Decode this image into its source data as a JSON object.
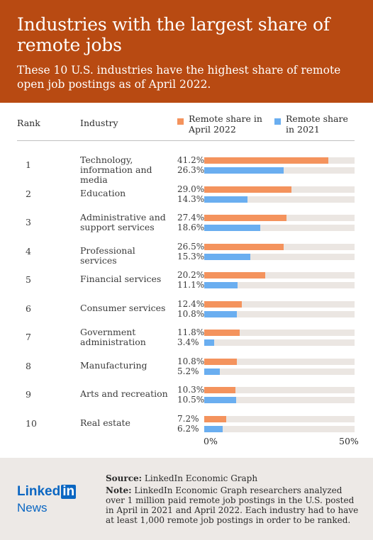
{
  "header": {
    "title": "Industries with the largest share of remote jobs",
    "subtitle": "These 10 U.S. industries have the highest share of remote open job postings as of April 2022."
  },
  "table": {
    "rank_header": "Rank",
    "industry_header": "Industry",
    "legend_2022": "Remote share in April 2022",
    "legend_2021": "Remote share in 2021"
  },
  "colors": {
    "series_2022": "#f4935d",
    "series_2021": "#6aaef0",
    "track": "#ebe6e2",
    "header_bg": "#b84a12",
    "brand": "#0a66c2"
  },
  "chart_data": {
    "type": "bar",
    "orientation": "horizontal",
    "xlim": [
      0,
      50
    ],
    "ticks": [
      "0%",
      "50%"
    ],
    "rows": [
      {
        "rank": "1",
        "industry": "Technology, information and media",
        "v2022": 41.2,
        "v2021": 26.3,
        "l2022": "41.2%",
        "l2021": "26.3%"
      },
      {
        "rank": "2",
        "industry": "Education",
        "v2022": 29.0,
        "v2021": 14.3,
        "l2022": "29.0%",
        "l2021": "14.3%"
      },
      {
        "rank": "3",
        "industry": "Administrative and support services",
        "v2022": 27.4,
        "v2021": 18.6,
        "l2022": "27.4%",
        "l2021": "18.6%"
      },
      {
        "rank": "4",
        "industry": "Professional services",
        "v2022": 26.5,
        "v2021": 15.3,
        "l2022": "26.5%",
        "l2021": "15.3%"
      },
      {
        "rank": "5",
        "industry": "Financial services",
        "v2022": 20.2,
        "v2021": 11.1,
        "l2022": "20.2%",
        "l2021": "11.1%"
      },
      {
        "rank": "6",
        "industry": "Consumer services",
        "v2022": 12.4,
        "v2021": 10.8,
        "l2022": "12.4%",
        "l2021": "10.8%"
      },
      {
        "rank": "7",
        "industry": "Government administration",
        "v2022": 11.8,
        "v2021": 3.4,
        "l2022": "11.8%",
        "l2021": "3.4%"
      },
      {
        "rank": "8",
        "industry": "Manufacturing",
        "v2022": 10.8,
        "v2021": 5.2,
        "l2022": "10.8%",
        "l2021": "5.2%"
      },
      {
        "rank": "9",
        "industry": "Arts and recreation",
        "v2022": 10.3,
        "v2021": 10.5,
        "l2022": "10.3%",
        "l2021": "10.5%"
      },
      {
        "rank": "10",
        "industry": "Real estate",
        "v2022": 7.2,
        "v2021": 6.2,
        "l2022": "7.2%",
        "l2021": "6.2%"
      }
    ]
  },
  "footer": {
    "logo_word": "Linked",
    "logo_in": "in",
    "logo_news": "News",
    "source_label": "Source:",
    "source_text": "LinkedIn Economic Graph",
    "note_label": "Note:",
    "note_text": "LinkedIn Economic Graph researchers analyzed over 1 million paid remote job postings in the U.S. posted in April in 2021 and April 2022. Each industry had to have at least 1,000 remote job postings in order to be ranked."
  }
}
